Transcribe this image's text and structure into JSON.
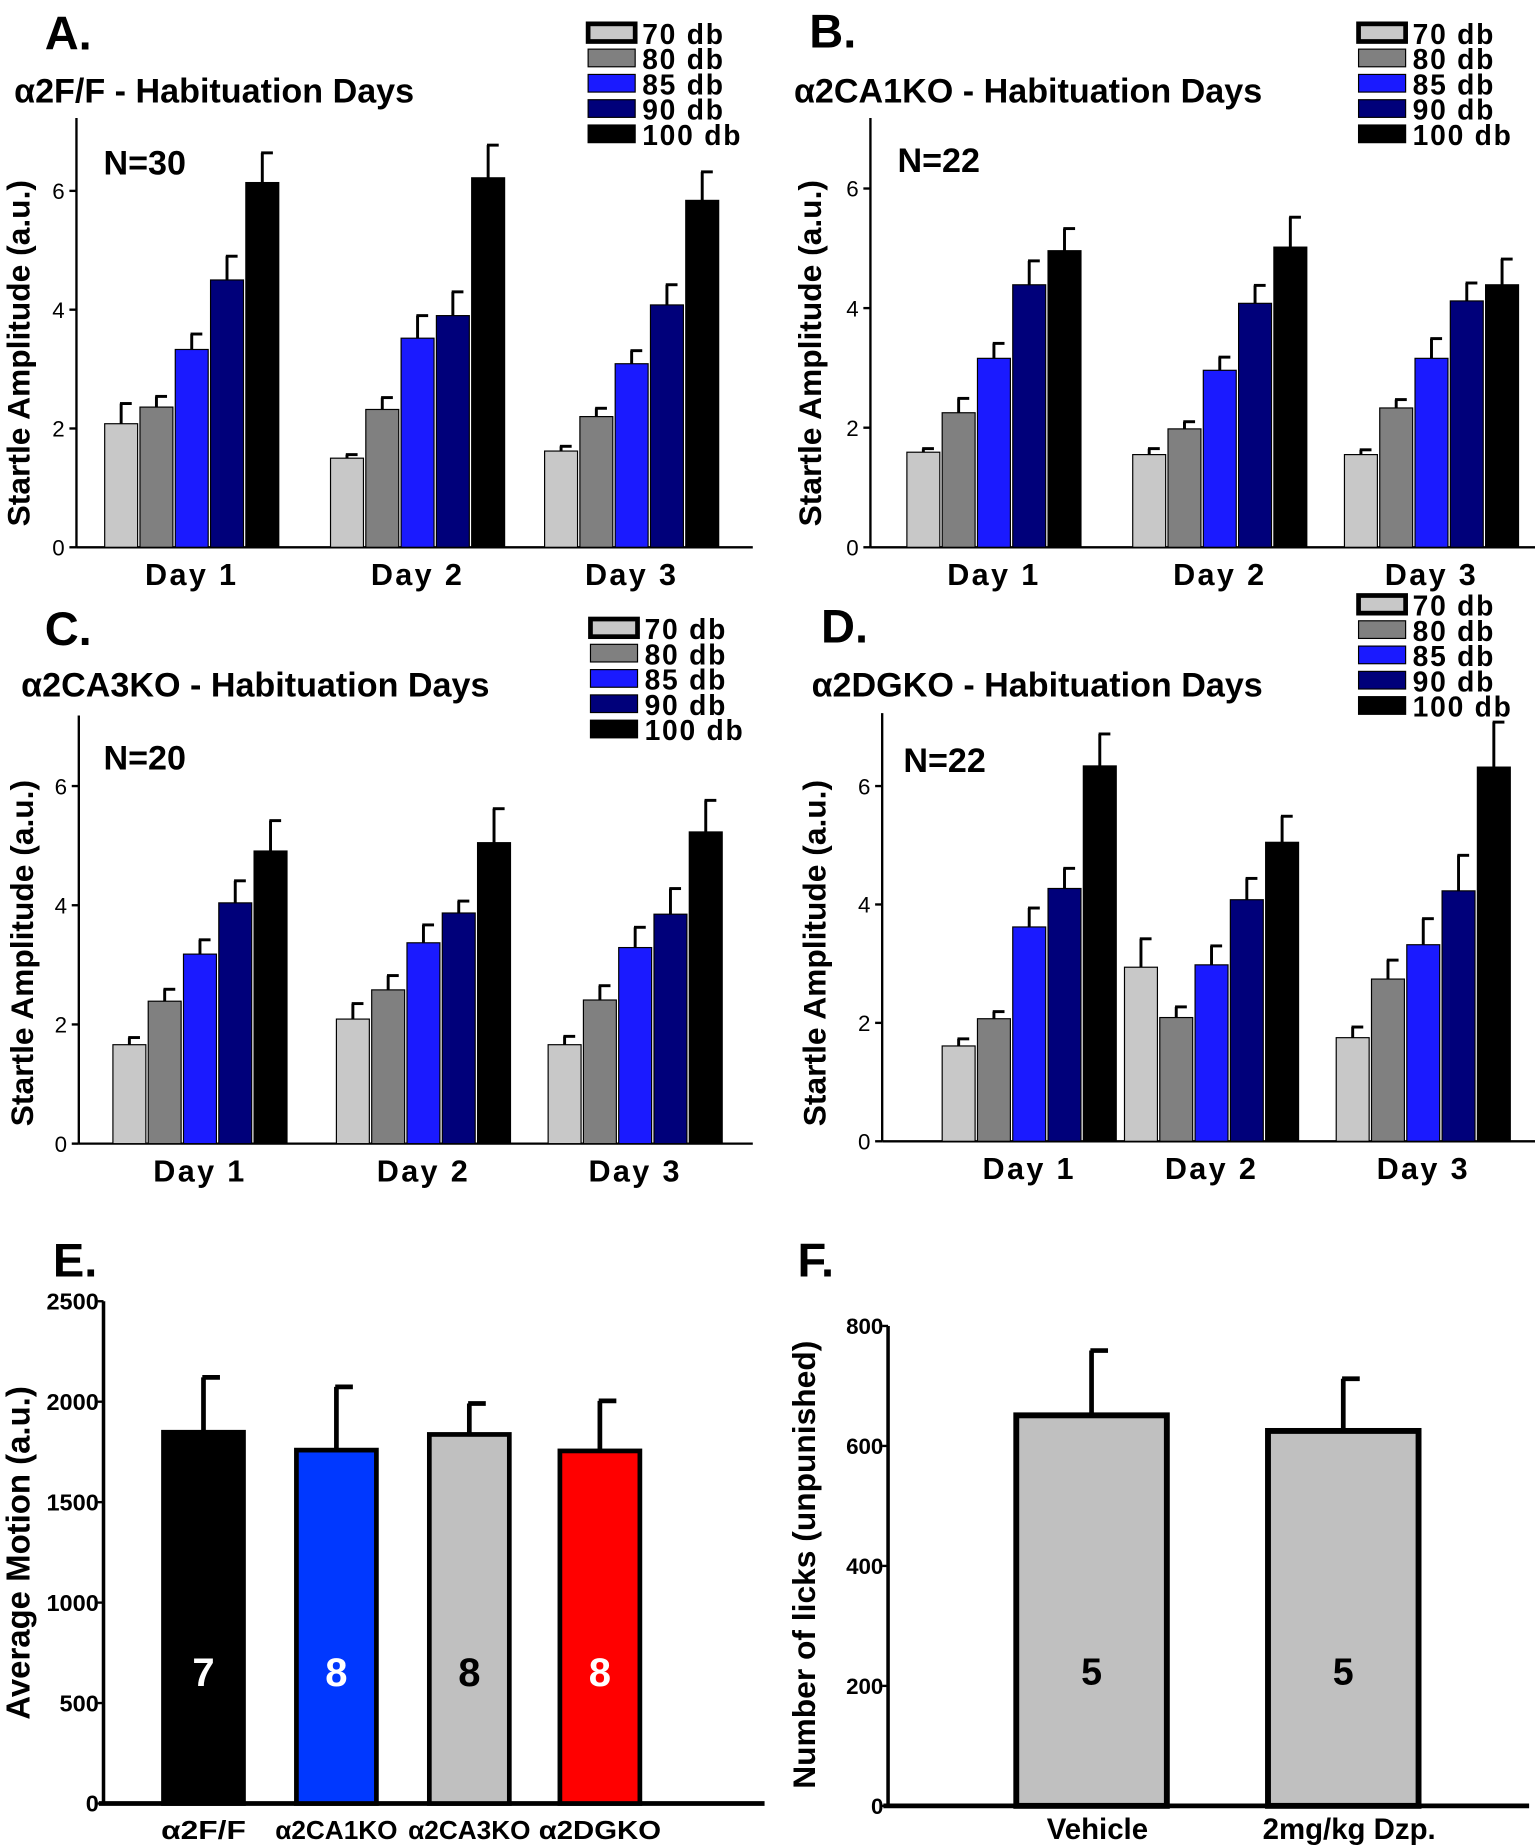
{
  "colors": {
    "70 db": "#c8c8c8",
    "80 db": "#808080",
    "85 db": "#1a1aff",
    "90 db": "#00007a",
    "100 db": "#000000",
    "α2F/F": "#000000",
    "α2CA1KO": "#0038ff",
    "α2CA3KO": "#c0c0c0",
    "α2DGKO": "#ff0000",
    "Vehicle": "#c0c0c0",
    "2mg/kg Dzp.": "#c0c0c0"
  },
  "chart_data": [
    {
      "panel": "A.",
      "type": "bar",
      "title": "α2F/F - Habituation Days",
      "annotation": "N=30",
      "ylabel": "Startle Amplitude (a.u.)",
      "ylim": [
        0,
        7
      ],
      "yticks": [
        "0",
        "2",
        "4",
        "6"
      ],
      "categories": [
        "Day 1",
        "Day 2",
        "Day 3"
      ],
      "legend": "top-right",
      "series": [
        {
          "name": "70 db",
          "values": [
            2.08,
            1.5,
            1.62
          ],
          "errors": [
            0.34,
            0.06,
            0.08
          ]
        },
        {
          "name": "80 db",
          "values": [
            2.36,
            2.32,
            2.2
          ],
          "errors": [
            0.18,
            0.2,
            0.14
          ]
        },
        {
          "name": "85 db",
          "values": [
            3.33,
            3.52,
            3.09
          ],
          "errors": [
            0.26,
            0.38,
            0.22
          ]
        },
        {
          "name": "90 db",
          "values": [
            4.5,
            3.9,
            4.08
          ],
          "errors": [
            0.4,
            0.4,
            0.34
          ]
        },
        {
          "name": "100 db",
          "values": [
            6.14,
            6.22,
            5.84
          ],
          "errors": [
            0.5,
            0.55,
            0.48
          ]
        }
      ]
    },
    {
      "panel": "B.",
      "type": "bar",
      "title": "α2CA1KO - Habituation Days",
      "annotation": "N=22",
      "ylabel": "Startle Amplitude (a.u.)",
      "ylim": [
        0,
        7
      ],
      "yticks": [
        "0",
        "2",
        "4",
        "6"
      ],
      "categories": [
        "Day 1",
        "Day 2",
        "Day 3"
      ],
      "legend": "top-right",
      "series": [
        {
          "name": "70 db",
          "values": [
            1.59,
            1.55,
            1.55
          ],
          "errors": [
            0.06,
            0.1,
            0.08
          ]
        },
        {
          "name": "80 db",
          "values": [
            2.25,
            1.98,
            2.33
          ],
          "errors": [
            0.24,
            0.12,
            0.14
          ]
        },
        {
          "name": "85 db",
          "values": [
            3.16,
            2.96,
            3.16
          ],
          "errors": [
            0.25,
            0.22,
            0.33
          ]
        },
        {
          "name": "90 db",
          "values": [
            4.39,
            4.08,
            4.12
          ],
          "errors": [
            0.4,
            0.3,
            0.3
          ]
        },
        {
          "name": "100 db",
          "values": [
            4.96,
            5.02,
            4.39
          ],
          "errors": [
            0.37,
            0.5,
            0.43
          ]
        }
      ]
    },
    {
      "panel": "C.",
      "type": "bar",
      "title": "α2CA3KO - Habituation Days",
      "annotation": "N=20",
      "ylabel": "Startle Amplitude (a.u.)",
      "ylim": [
        0,
        7
      ],
      "yticks": [
        "0",
        "2",
        "4",
        "6"
      ],
      "categories": [
        "Day 1",
        "Day 2",
        "Day 3"
      ],
      "legend": "top-right",
      "series": [
        {
          "name": "70 db",
          "values": [
            1.66,
            2.09,
            1.66
          ],
          "errors": [
            0.12,
            0.26,
            0.14
          ]
        },
        {
          "name": "80 db",
          "values": [
            2.39,
            2.58,
            2.41
          ],
          "errors": [
            0.2,
            0.24,
            0.24
          ]
        },
        {
          "name": "85 db",
          "values": [
            3.18,
            3.37,
            3.29
          ],
          "errors": [
            0.24,
            0.3,
            0.34
          ]
        },
        {
          "name": "90 db",
          "values": [
            4.04,
            3.87,
            3.85
          ],
          "errors": [
            0.37,
            0.2,
            0.43
          ]
        },
        {
          "name": "100 db",
          "values": [
            4.91,
            5.05,
            5.23
          ],
          "errors": [
            0.51,
            0.57,
            0.53
          ]
        }
      ]
    },
    {
      "panel": "D.",
      "type": "bar",
      "title": "α2DGKO - Habituation Days",
      "annotation": "N=22",
      "ylabel": "Startle Amplitude (a.u.)",
      "ylim": [
        0,
        7
      ],
      "yticks": [
        "0",
        "2",
        "4",
        "6"
      ],
      "categories": [
        "Day 1",
        "Day 2",
        "Day 3"
      ],
      "legend": "top-right",
      "series": [
        {
          "name": "70 db",
          "values": [
            1.61,
            2.94,
            1.75
          ],
          "errors": [
            0.12,
            0.48,
            0.18
          ]
        },
        {
          "name": "80 db",
          "values": [
            2.07,
            2.09,
            2.74
          ],
          "errors": [
            0.12,
            0.18,
            0.32
          ]
        },
        {
          "name": "85 db",
          "values": [
            3.62,
            2.98,
            3.32
          ],
          "errors": [
            0.32,
            0.32,
            0.44
          ]
        },
        {
          "name": "90 db",
          "values": [
            4.27,
            4.08,
            4.23
          ],
          "errors": [
            0.34,
            0.36,
            0.6
          ]
        },
        {
          "name": "100 db",
          "values": [
            6.34,
            5.05,
            6.32
          ],
          "errors": [
            0.54,
            0.44,
            0.76
          ]
        }
      ]
    },
    {
      "panel": "E.",
      "type": "bar",
      "ylabel": "Average Motion (a.u.)",
      "ylim": [
        0,
        2500
      ],
      "yticks": [
        "0",
        "500",
        "1000",
        "1500",
        "2000",
        "2500"
      ],
      "categories": [
        "α2F/F",
        "α2CA1KO",
        "α2CA3KO",
        "α2DGKO"
      ],
      "values": [
        1848,
        1759,
        1837,
        1755
      ],
      "errors": [
        273,
        315,
        154,
        249
      ],
      "bar_labels": [
        "7",
        "8",
        "8",
        "8"
      ]
    },
    {
      "panel": "F.",
      "type": "bar",
      "ylabel": "Number of licks (unpunished)",
      "ylim": [
        0,
        800
      ],
      "yticks": [
        "0",
        "200",
        "400",
        "600",
        "800"
      ],
      "categories": [
        "Vehicle",
        "2mg/kg Dzp."
      ],
      "values": [
        651,
        625
      ],
      "errors": [
        108,
        87
      ],
      "bar_labels": [
        "5",
        "5"
      ]
    }
  ]
}
